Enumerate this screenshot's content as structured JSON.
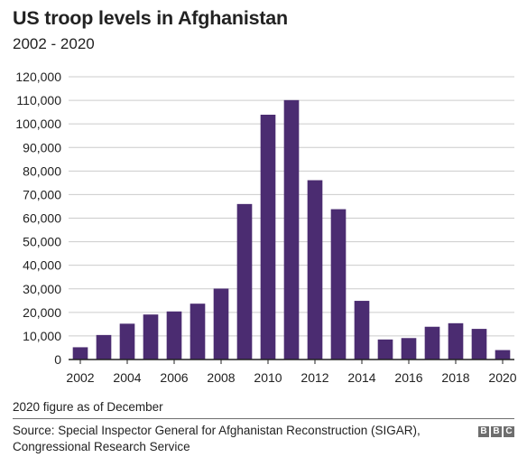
{
  "header": {
    "title": "US troop levels in Afghanistan",
    "subtitle": "2002 - 2020"
  },
  "footer": {
    "note": "2020 figure as of December",
    "source": "Source: Special Inspector General for Afghanistan Reconstruction (SIGAR), Congressional Research Service",
    "logo_letters": [
      "B",
      "B",
      "C"
    ]
  },
  "colors": {
    "bar": "#4b2c71",
    "grid": "#cccccc",
    "axis": "#222222"
  },
  "chart_data": {
    "type": "bar",
    "title": "US troop levels in Afghanistan",
    "subtitle": "2002 - 2020",
    "xlabel": "",
    "ylabel": "",
    "categories": [
      "2002",
      "2003",
      "2004",
      "2005",
      "2006",
      "2007",
      "2008",
      "2009",
      "2010",
      "2011",
      "2012",
      "2013",
      "2014",
      "2015",
      "2016",
      "2017",
      "2018",
      "2019",
      "2020"
    ],
    "x_tick_labels": [
      "2002",
      "2004",
      "2006",
      "2008",
      "2010",
      "2012",
      "2014",
      "2016",
      "2018",
      "2020"
    ],
    "values": [
      5200,
      10400,
      15200,
      19100,
      20400,
      23700,
      30100,
      66000,
      103900,
      110100,
      76100,
      63800,
      24900,
      8500,
      9100,
      13900,
      15400,
      13000,
      4000
    ],
    "ylim": [
      0,
      120000
    ],
    "y_ticks": [
      0,
      10000,
      20000,
      30000,
      40000,
      50000,
      60000,
      70000,
      80000,
      90000,
      100000,
      110000,
      120000
    ],
    "y_tick_labels": [
      "0",
      "10,000",
      "20,000",
      "30,000",
      "40,000",
      "50,000",
      "60,000",
      "70,000",
      "80,000",
      "90,000",
      "100,000",
      "110,000",
      "120,000"
    ],
    "grid": true,
    "legend": "none"
  }
}
